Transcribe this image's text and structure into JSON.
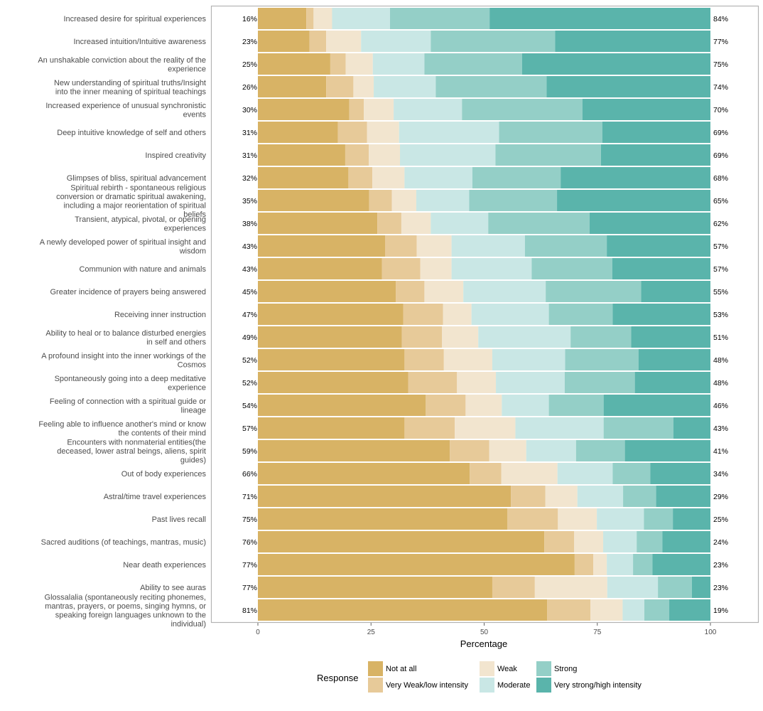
{
  "chart_data": {
    "type": "bar",
    "orientation": "horizontal",
    "stacked": true,
    "xlabel": "Percentage",
    "ylabel": "",
    "xlim": [
      0,
      100
    ],
    "xticks": [
      0,
      25,
      50,
      75,
      100
    ],
    "xtick_labels": [
      "0",
      "25",
      "50",
      "75",
      "100"
    ],
    "legend": {
      "title": "Response",
      "position": "bottom",
      "entries": [
        {
          "label": "Not at all",
          "color": "#D8B365"
        },
        {
          "label": "Very Weak/low intensity",
          "color": "#E7CA99"
        },
        {
          "label": "Weak",
          "color": "#F2E5CF"
        },
        {
          "label": "Moderate",
          "color": "#C9E7E5"
        },
        {
          "label": "Strong",
          "color": "#94CFC7"
        },
        {
          "label": "Very strong/high intensity",
          "color": "#5AB4AB"
        }
      ]
    },
    "categories": [
      {
        "label": [
          "Increased desire for spiritual experiences"
        ],
        "left_pct": "16%",
        "right_pct": "84%",
        "values": [
          10.7,
          1.6,
          4.1,
          12.8,
          22.0,
          48.8
        ]
      },
      {
        "label": [
          "Increased intuition/Intuitive awareness"
        ],
        "left_pct": "23%",
        "right_pct": "77%",
        "values": [
          11.4,
          3.7,
          7.7,
          15.4,
          27.5,
          34.3
        ]
      },
      {
        "label": [
          "An unshakable conviction about the reality of the",
          "experience"
        ],
        "left_pct": "25%",
        "right_pct": "75%",
        "values": [
          16.0,
          3.4,
          6.0,
          11.4,
          21.6,
          41.6
        ]
      },
      {
        "label": [
          "New understanding of spiritual truths/Insight",
          "into the inner meaning of spiritual teachings"
        ],
        "left_pct": "26%",
        "right_pct": "74%",
        "values": [
          15.1,
          6.0,
          4.5,
          13.7,
          24.5,
          36.2
        ]
      },
      {
        "label": [
          "Increased experience of unusual synchronistic",
          "events"
        ],
        "left_pct": "30%",
        "right_pct": "70%",
        "values": [
          20.2,
          3.2,
          6.6,
          15.1,
          26.6,
          28.3
        ]
      },
      {
        "label": [
          "Deep intuitive knowledge of self and others"
        ],
        "left_pct": "31%",
        "right_pct": "69%",
        "values": [
          17.7,
          6.4,
          7.1,
          22.1,
          22.8,
          23.9
        ]
      },
      {
        "label": [
          "Inspired creativity"
        ],
        "left_pct": "31%",
        "right_pct": "69%",
        "values": [
          19.3,
          5.2,
          6.9,
          21.1,
          23.3,
          24.2
        ]
      },
      {
        "label": [
          "Glimpses of bliss, spiritual advancement"
        ],
        "left_pct": "32%",
        "right_pct": "68%",
        "values": [
          20.0,
          5.3,
          7.1,
          15.0,
          19.5,
          33.1
        ]
      },
      {
        "label": [
          "Spiritual rebirth - spontaneous religious",
          "conversion or dramatic spiritual awakening,",
          "including a major reorientation of spiritual",
          "beliefs"
        ],
        "left_pct": "35%",
        "right_pct": "65%",
        "values": [
          24.6,
          5.0,
          5.4,
          11.7,
          19.4,
          33.9
        ]
      },
      {
        "label": [
          "Transient, atypical, pivotal, or opening",
          "experiences"
        ],
        "left_pct": "38%",
        "right_pct": "62%",
        "values": [
          26.4,
          5.3,
          6.5,
          12.7,
          22.4,
          26.7
        ]
      },
      {
        "label": [
          "A newly developed power of spiritual insight and",
          "wisdom"
        ],
        "left_pct": "43%",
        "right_pct": "57%",
        "values": [
          28.1,
          7.0,
          7.7,
          16.2,
          18.1,
          22.9
        ]
      },
      {
        "label": [
          "Communion with nature and animals"
        ],
        "left_pct": "43%",
        "right_pct": "57%",
        "values": [
          27.4,
          8.5,
          6.9,
          17.7,
          17.8,
          21.7
        ]
      },
      {
        "label": [
          "Greater incidence of prayers being answered"
        ],
        "left_pct": "45%",
        "right_pct": "55%",
        "values": [
          30.5,
          6.3,
          8.6,
          18.2,
          21.1,
          15.3
        ]
      },
      {
        "label": [
          "Receiving inner instruction"
        ],
        "left_pct": "47%",
        "right_pct": "53%",
        "values": [
          32.1,
          8.8,
          6.3,
          17.1,
          14.1,
          21.6
        ]
      },
      {
        "label": [
          "Ability to heal or to balance disturbed energies",
          "in self and others"
        ],
        "left_pct": "49%",
        "right_pct": "51%",
        "values": [
          31.8,
          8.9,
          8.0,
          20.4,
          13.4,
          17.5
        ]
      },
      {
        "label": [
          "A profound insight into the inner workings of the",
          "Cosmos"
        ],
        "left_pct": "52%",
        "right_pct": "48%",
        "values": [
          32.4,
          8.7,
          10.7,
          16.1,
          16.2,
          15.9
        ]
      },
      {
        "label": [
          "Spontaneously going into a deep meditative",
          "experience"
        ],
        "left_pct": "52%",
        "right_pct": "48%",
        "values": [
          33.2,
          10.8,
          8.6,
          15.2,
          15.5,
          16.7
        ]
      },
      {
        "label": [
          "Feeling of connection with a spiritual guide or",
          "lineage"
        ],
        "left_pct": "54%",
        "right_pct": "46%",
        "values": [
          37.1,
          8.8,
          8.0,
          10.4,
          12.1,
          23.6
        ]
      },
      {
        "label": [
          "Feeling able to influence another's mind or know",
          "the contents of their mind"
        ],
        "left_pct": "57%",
        "right_pct": "43%",
        "values": [
          32.4,
          11.1,
          13.4,
          19.5,
          15.4,
          8.2
        ]
      },
      {
        "label": [
          "Encounters with nonmaterial entities(the",
          "deceased, lower astral beings, aliens, spirit",
          "guides)"
        ],
        "left_pct": "59%",
        "right_pct": "41%",
        "values": [
          42.4,
          8.7,
          8.2,
          11.0,
          10.8,
          18.9
        ]
      },
      {
        "label": [
          "Out of body experiences"
        ],
        "left_pct": "66%",
        "right_pct": "34%",
        "values": [
          46.8,
          7.0,
          12.4,
          12.2,
          8.3,
          13.3
        ]
      },
      {
        "label": [
          "Astral/time travel experiences"
        ],
        "left_pct": "71%",
        "right_pct": "29%",
        "values": [
          55.9,
          7.6,
          7.1,
          10.1,
          7.3,
          12.0
        ]
      },
      {
        "label": [
          "Past lives recall"
        ],
        "left_pct": "75%",
        "right_pct": "25%",
        "values": [
          55.1,
          11.2,
          8.6,
          10.4,
          6.4,
          8.3
        ]
      },
      {
        "label": [
          "Sacred auditions (of teachings, mantras, music)"
        ],
        "left_pct": "76%",
        "right_pct": "24%",
        "values": [
          63.3,
          6.6,
          6.4,
          7.4,
          5.7,
          10.6
        ]
      },
      {
        "label": [
          "Near death experiences"
        ],
        "left_pct": "77%",
        "right_pct": "23%",
        "values": [
          70.0,
          4.1,
          3.0,
          5.8,
          4.3,
          12.8
        ]
      },
      {
        "label": [
          "Ability to see auras"
        ],
        "left_pct": "77%",
        "right_pct": "23%",
        "values": [
          51.8,
          9.4,
          16.0,
          11.2,
          7.5,
          4.1
        ]
      },
      {
        "label": [
          "Glossalalia (spontaneously reciting phonemes,",
          "mantras, prayers, or poems, singing hymns, or",
          "speaking foreign languages unknown to the",
          "individual)"
        ],
        "left_pct": "81%",
        "right_pct": "19%",
        "values": [
          63.9,
          9.6,
          7.1,
          4.8,
          5.5,
          9.1
        ]
      }
    ]
  }
}
